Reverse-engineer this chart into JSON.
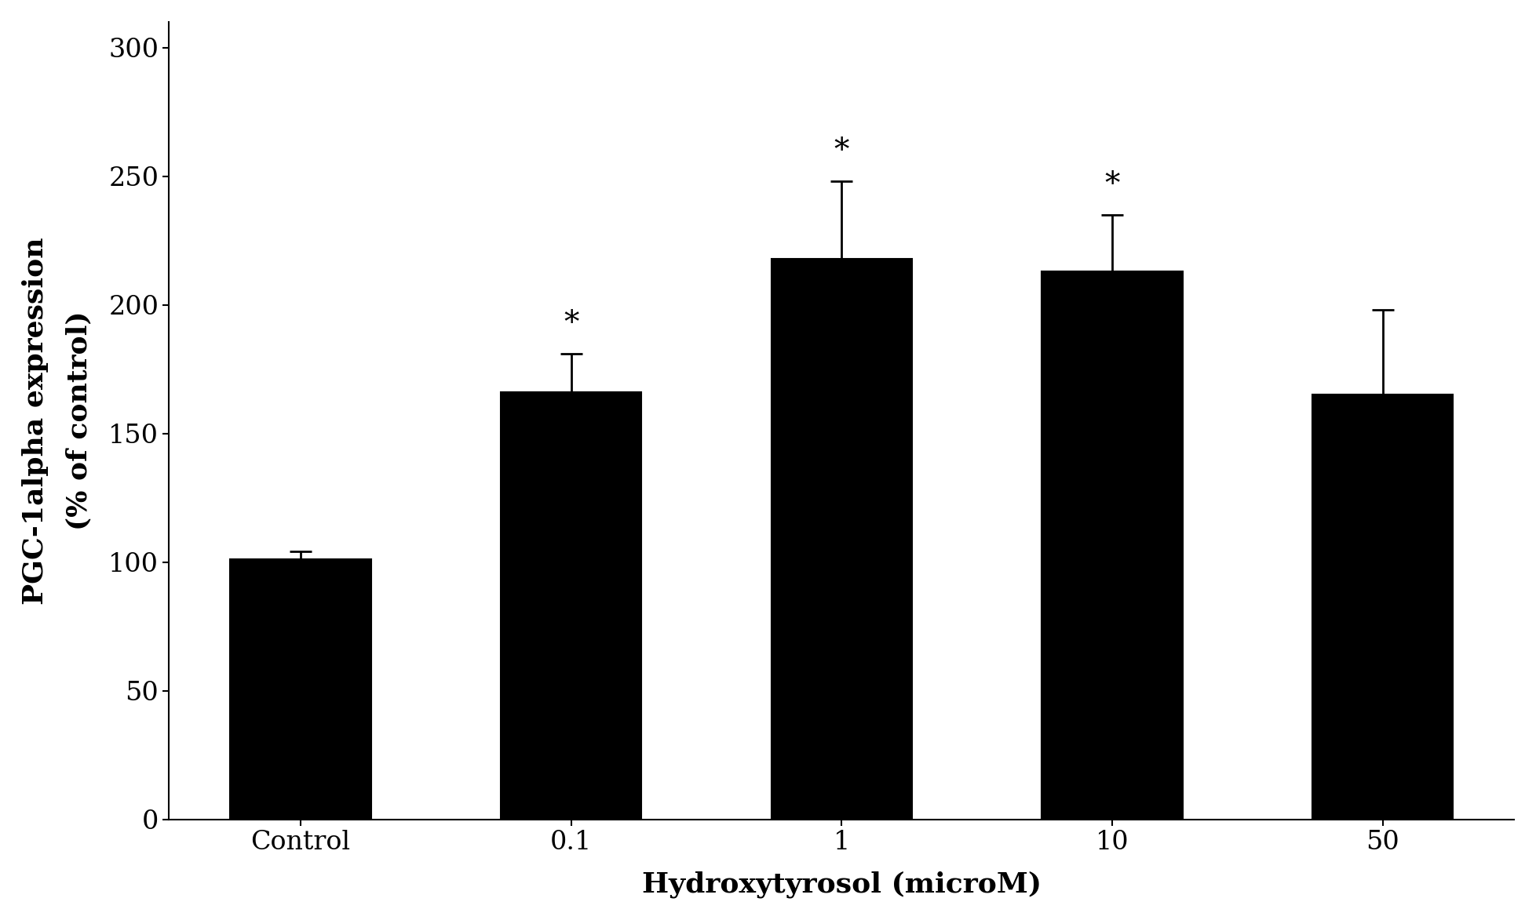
{
  "categories": [
    "Control",
    "0.1",
    "1",
    "10",
    "50"
  ],
  "values": [
    101,
    166,
    218,
    213,
    165
  ],
  "errors": [
    3,
    15,
    30,
    22,
    33
  ],
  "significance": [
    false,
    true,
    true,
    true,
    false
  ],
  "bar_color": "#000000",
  "bar_hatch": "....",
  "bar_width": 0.52,
  "ylabel_line1": "PGC-1alpha expression",
  "ylabel_line2": "(% of control)",
  "xlabel": "Hydroxytyrosol (microM)",
  "ylim": [
    0,
    310
  ],
  "yticks": [
    0,
    50,
    100,
    150,
    200,
    250,
    300
  ],
  "background_color": "#ffffff",
  "ylabel_fontsize": 26,
  "xlabel_fontsize": 26,
  "tick_fontsize": 24,
  "star_fontsize": 28,
  "figsize": [
    19.57,
    11.73
  ],
  "dpi": 100
}
